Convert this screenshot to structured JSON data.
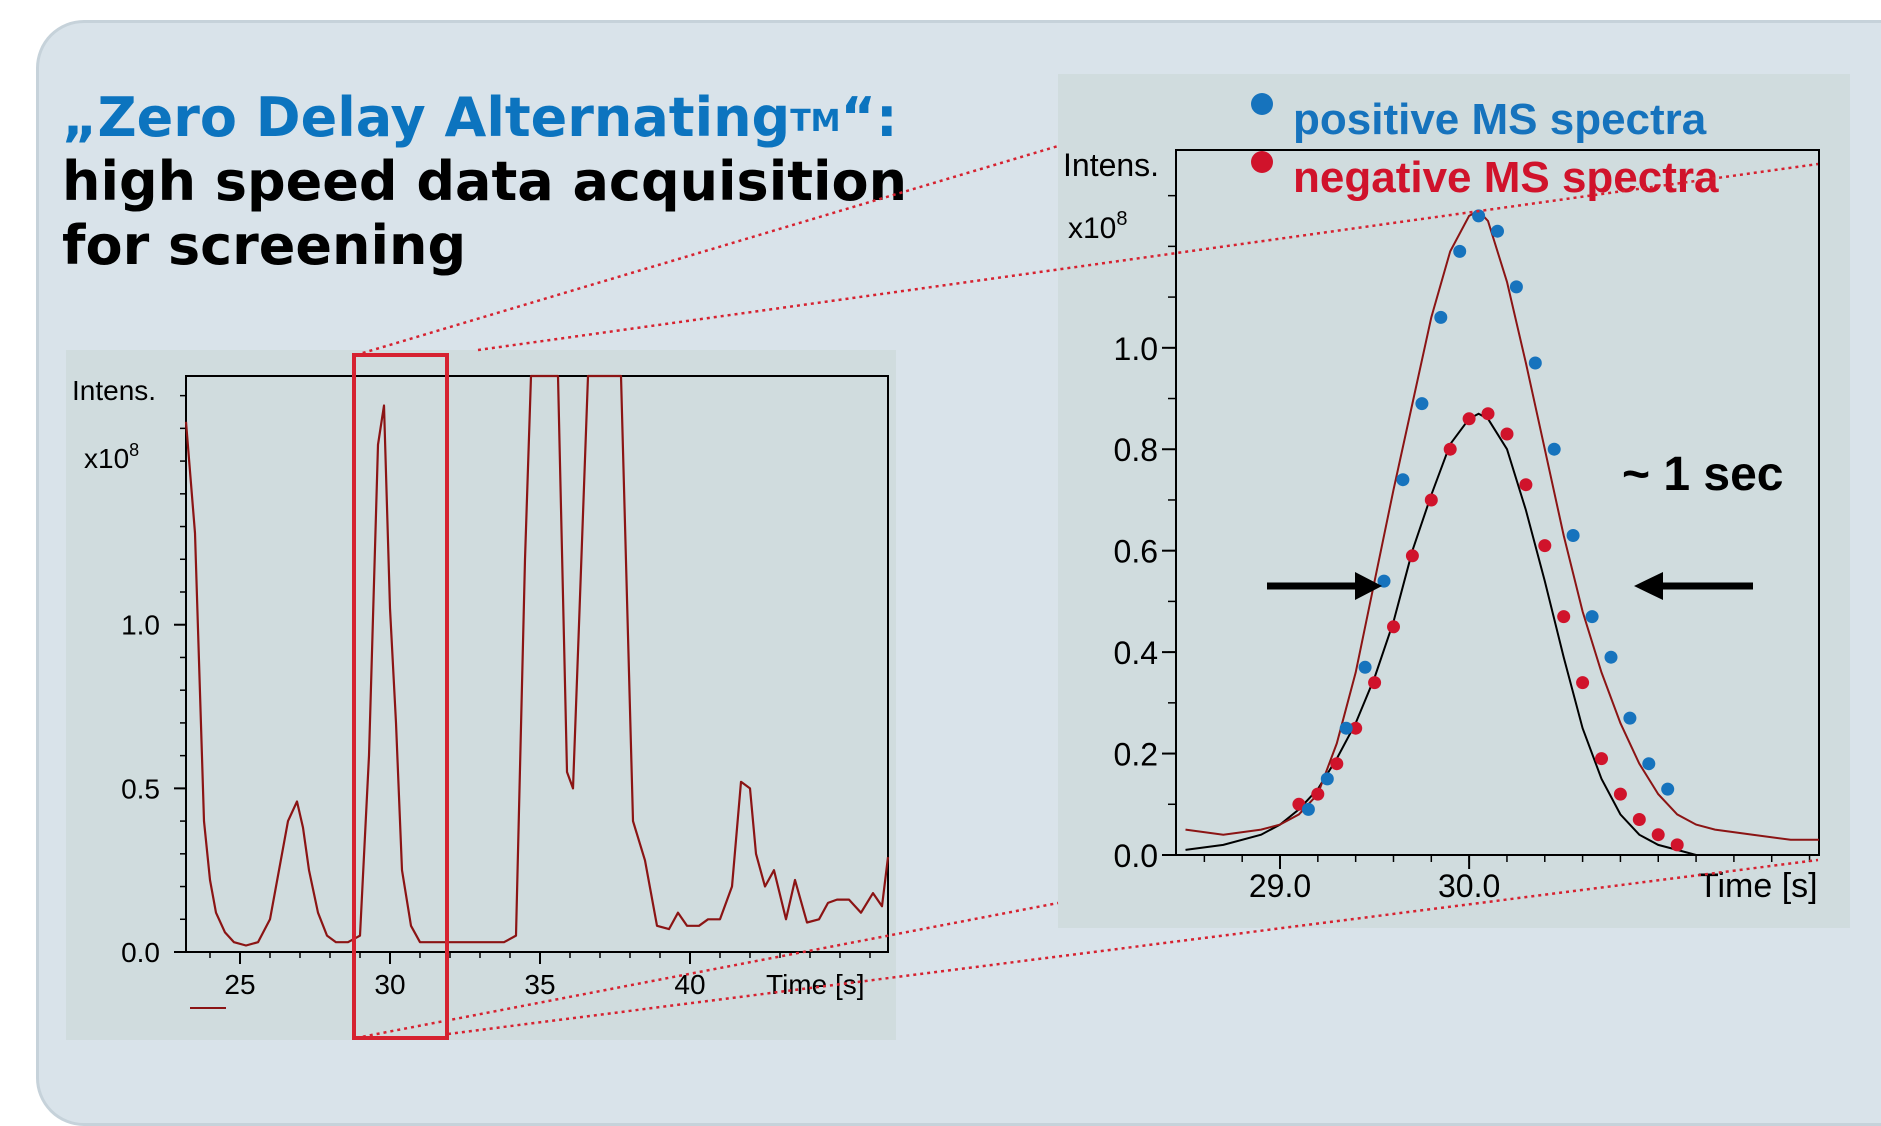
{
  "heading": {
    "line1": "„Zero Delay Alternating",
    "line1_tm": "TM",
    "line1_end": "“:",
    "line2": "high speed data acquisition",
    "line3": "for screening"
  },
  "colors": {
    "background": "#d9e3ea",
    "chart_background": "#d0dcde",
    "title_blue": "#0c74bf",
    "positive": "#1673bd",
    "negative": "#d0132b",
    "trace": "#8b1414",
    "highlight_box": "#d62230"
  },
  "chart_data": [
    {
      "type": "line",
      "name": "overview",
      "ylabel": "Intens.",
      "yunit": "x10",
      "yunit_exp": "8",
      "xlabel": "Time [s]",
      "xlim": [
        23.2,
        46.6
      ],
      "ylim": [
        0,
        1.76
      ],
      "xticks": [
        25,
        30,
        35,
        40
      ],
      "xtick_labels": [
        "25",
        "30",
        "35",
        "40"
      ],
      "yticks": [
        0.0,
        0.5,
        1.0
      ],
      "ytick_labels": [
        "0.0",
        "0.5",
        "1.0"
      ],
      "highlight_range": [
        28.8,
        31.9
      ],
      "series": [
        {
          "x": [
            23.2,
            23.5,
            23.8,
            24.0,
            24.2,
            24.5,
            24.8,
            25.2,
            25.6,
            26.0,
            26.3,
            26.6,
            26.9,
            27.1,
            27.3,
            27.6,
            27.9,
            28.2,
            28.6,
            29.0,
            29.3,
            29.6,
            29.8,
            30.0,
            30.2,
            30.4,
            30.7,
            31.0,
            31.4,
            31.8,
            32.3,
            32.8,
            33.3,
            33.8,
            34.2,
            34.5,
            34.7,
            35.2,
            35.6,
            35.9,
            36.1,
            36.3,
            36.6,
            36.9,
            37.3,
            37.7,
            38.1,
            38.5,
            38.9,
            39.3,
            39.6,
            39.9,
            40.3,
            40.6,
            41.0,
            41.4,
            41.7,
            42.0,
            42.2,
            42.5,
            42.8,
            43.2,
            43.5,
            43.9,
            44.3,
            44.6,
            44.9,
            45.3,
            45.7,
            46.1,
            46.4,
            46.6
          ],
          "y": [
            1.62,
            1.28,
            0.4,
            0.22,
            0.12,
            0.06,
            0.03,
            0.02,
            0.03,
            0.1,
            0.25,
            0.4,
            0.46,
            0.38,
            0.25,
            0.12,
            0.05,
            0.03,
            0.03,
            0.05,
            0.6,
            1.55,
            1.67,
            1.05,
            0.7,
            0.25,
            0.08,
            0.03,
            0.03,
            0.03,
            0.03,
            0.03,
            0.03,
            0.03,
            0.05,
            1.2,
            1.76,
            1.76,
            1.76,
            0.55,
            0.5,
            1.0,
            1.76,
            1.76,
            1.76,
            1.76,
            0.4,
            0.28,
            0.08,
            0.07,
            0.12,
            0.08,
            0.08,
            0.1,
            0.1,
            0.2,
            0.52,
            0.5,
            0.3,
            0.2,
            0.25,
            0.1,
            0.22,
            0.09,
            0.1,
            0.15,
            0.16,
            0.16,
            0.12,
            0.18,
            0.14,
            0.29
          ]
        }
      ]
    },
    {
      "type": "scatter",
      "name": "zoom",
      "ylabel": "Intens.",
      "yunit": "x10",
      "yunit_exp": "8",
      "xlabel": "Time [s]",
      "xlim": [
        28.45,
        31.85
      ],
      "ylim": [
        0,
        1.39
      ],
      "xticks": [
        29.0,
        30.0
      ],
      "xtick_labels": [
        "29.0",
        "30.0"
      ],
      "yticks": [
        0.0,
        0.2,
        0.4,
        0.6,
        0.8,
        1.0
      ],
      "ytick_labels": [
        "0.0",
        "0.2",
        "0.4",
        "0.6",
        "0.8",
        "1.0"
      ],
      "annotation": "~ 1 sec",
      "series": [
        {
          "name": "positive MS spectra",
          "x": [
            29.15,
            29.25,
            29.35,
            29.45,
            29.55,
            29.65,
            29.75,
            29.85,
            29.95,
            30.05,
            30.15,
            30.25,
            30.35,
            30.45,
            30.55,
            30.65,
            30.75,
            30.85,
            30.95,
            31.05
          ],
          "y": [
            0.09,
            0.15,
            0.25,
            0.37,
            0.54,
            0.74,
            0.89,
            1.06,
            1.19,
            1.26,
            1.23,
            1.12,
            0.97,
            0.8,
            0.63,
            0.47,
            0.39,
            0.27,
            0.18,
            0.13
          ]
        },
        {
          "name": "negative MS spectra",
          "x": [
            29.1,
            29.2,
            29.3,
            29.4,
            29.5,
            29.6,
            29.7,
            29.8,
            29.9,
            30.0,
            30.1,
            30.2,
            30.3,
            30.4,
            30.5,
            30.6,
            30.7,
            30.8,
            30.9,
            31.0,
            31.1
          ],
          "y": [
            0.1,
            0.12,
            0.18,
            0.25,
            0.34,
            0.45,
            0.59,
            0.7,
            0.8,
            0.86,
            0.87,
            0.83,
            0.73,
            0.61,
            0.47,
            0.34,
            0.19,
            0.12,
            0.07,
            0.04,
            0.02
          ]
        }
      ],
      "envelopes": [
        {
          "x": [
            28.5,
            28.7,
            28.9,
            29.0,
            29.1,
            29.2,
            29.3,
            29.4,
            29.5,
            29.6,
            29.7,
            29.8,
            29.9,
            30.0,
            30.05,
            30.1,
            30.2,
            30.3,
            30.4,
            30.5,
            30.6,
            30.7,
            30.8,
            30.9,
            31.0,
            31.1,
            31.2,
            31.3,
            31.5,
            31.7,
            31.85
          ],
          "y": [
            0.05,
            0.04,
            0.05,
            0.06,
            0.08,
            0.12,
            0.22,
            0.36,
            0.54,
            0.72,
            0.89,
            1.06,
            1.19,
            1.26,
            1.27,
            1.25,
            1.13,
            0.97,
            0.8,
            0.63,
            0.48,
            0.36,
            0.26,
            0.18,
            0.12,
            0.08,
            0.06,
            0.05,
            0.04,
            0.03,
            0.03
          ]
        },
        {
          "x": [
            28.5,
            28.7,
            28.9,
            29.0,
            29.1,
            29.2,
            29.3,
            29.4,
            29.5,
            29.6,
            29.7,
            29.8,
            29.9,
            30.0,
            30.05,
            30.1,
            30.2,
            30.3,
            30.4,
            30.5,
            30.6,
            30.7,
            30.8,
            30.9,
            31.0,
            31.1,
            31.2,
            31.4,
            31.6
          ],
          "y": [
            0.01,
            0.02,
            0.04,
            0.06,
            0.09,
            0.13,
            0.19,
            0.26,
            0.35,
            0.46,
            0.6,
            0.71,
            0.81,
            0.86,
            0.87,
            0.86,
            0.8,
            0.68,
            0.54,
            0.39,
            0.25,
            0.15,
            0.08,
            0.04,
            0.02,
            0.01,
            0.0,
            0.0,
            0.0
          ]
        }
      ]
    }
  ]
}
